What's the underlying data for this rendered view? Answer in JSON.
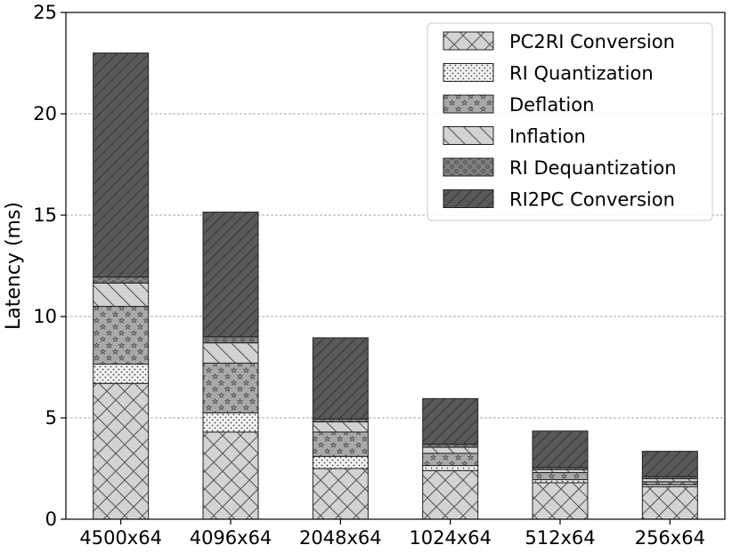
{
  "chart_data": {
    "type": "stacked_bar",
    "ylabel": "Latency (ms)",
    "xlabel": "",
    "ylim": [
      0,
      25
    ],
    "yticks": [
      0,
      5,
      10,
      15,
      20,
      25
    ],
    "grid": "horizontal-dashed",
    "legend_position": "top-right",
    "categories": [
      "4500x64",
      "4096x64",
      "2048x64",
      "1024x64",
      "512x64",
      "256x64"
    ],
    "series": [
      {
        "name": "PC2RI Conversion",
        "pattern": "crosshatch",
        "color": "#d3d3d3",
        "values": [
          6.7,
          4.3,
          2.5,
          2.4,
          1.8,
          1.6
        ]
      },
      {
        "name": "RI Quantization",
        "pattern": "dots",
        "color": "#f2f2f2",
        "values": [
          0.95,
          0.95,
          0.6,
          0.25,
          0.15,
          0.1
        ]
      },
      {
        "name": "Deflation",
        "pattern": "stars",
        "color": "#a9a9a9",
        "values": [
          2.85,
          2.45,
          1.2,
          0.6,
          0.35,
          0.15
        ]
      },
      {
        "name": "Inflation",
        "pattern": "backslash",
        "color": "#d3d3d3",
        "values": [
          1.15,
          1.0,
          0.5,
          0.3,
          0.15,
          0.15
        ]
      },
      {
        "name": "RI Dequantization",
        "pattern": "circles",
        "color": "#808080",
        "values": [
          0.3,
          0.3,
          0.15,
          0.15,
          0.1,
          0.1
        ]
      },
      {
        "name": "RI2PC Conversion",
        "pattern": "slash",
        "color": "#595959",
        "values": [
          11.05,
          6.15,
          4.0,
          2.25,
          1.8,
          1.25
        ]
      }
    ]
  }
}
